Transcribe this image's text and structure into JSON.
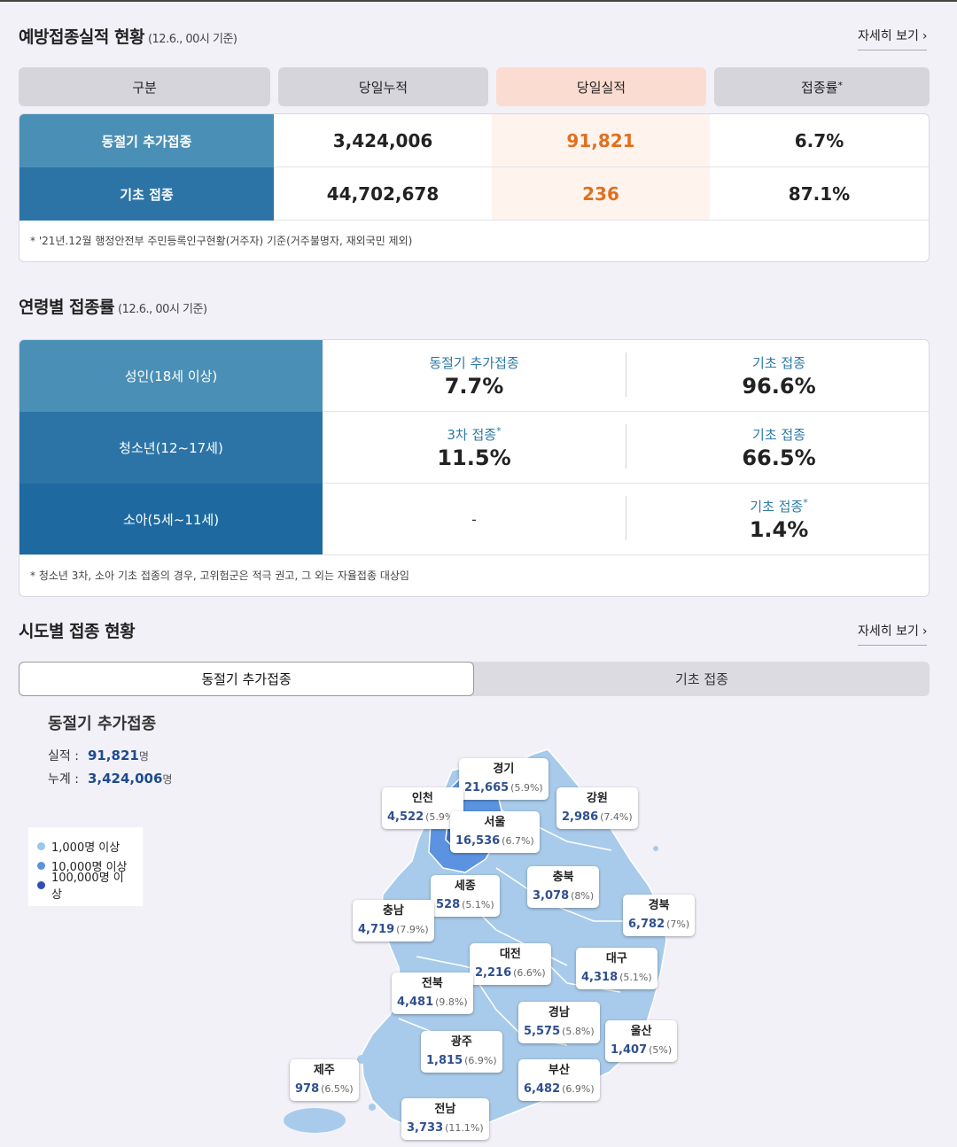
{
  "vaccination_status": {
    "title": "예방접종실적 현황",
    "basis": "(12.6., 00시 기준)",
    "more_label": "자세히 보기",
    "headers": [
      "구분",
      "당일누적",
      "당일실적",
      "접종률"
    ],
    "rate_mark": "*",
    "rows": [
      {
        "label": "동절기 추가접종",
        "cumulative": "3,424,006",
        "today": "91,821",
        "rate": "6.7%"
      },
      {
        "label": "기초 접종",
        "cumulative": "44,702,678",
        "today": "236",
        "rate": "87.1%"
      }
    ],
    "note": "* '21년.12월 행정안전부 주민등록인구현황(거주자) 기준(거주불명자, 재외국민 제외)"
  },
  "age_rates": {
    "title": "연령별 접종률",
    "basis": "(12.6., 00시 기준)",
    "rows": [
      {
        "label": "성인(18세 이상)",
        "left_label": "동절기 추가접종",
        "left_mark": "",
        "left_value": "7.7%",
        "right_label": "기초 접종",
        "right_mark": "",
        "right_value": "96.6%"
      },
      {
        "label": "청소년(12~17세)",
        "left_label": "3차 접종",
        "left_mark": "*",
        "left_value": "11.5%",
        "right_label": "기초 접종",
        "right_mark": "",
        "right_value": "66.5%"
      },
      {
        "label": "소아(5세~11세)",
        "left_label": "",
        "left_mark": "",
        "left_value": "-",
        "right_label": "기초 접종",
        "right_mark": "*",
        "right_value": "1.4%"
      }
    ],
    "note": "* 청소년 3차, 소아 기초 접종의 경우, 고위험군은 적극 권고, 그 외는 자율접종 대상임"
  },
  "regional": {
    "title": "시도별 접종 현황",
    "more_label": "자세히 보기",
    "tabs": [
      "동절기 추가접종",
      "기초 접종"
    ],
    "active_tab": 0,
    "map_title": "동절기 추가접종",
    "actual_label": "실적 :",
    "actual_value": "91,821",
    "total_label": "누계 :",
    "total_value": "3,424,006",
    "unit": "명",
    "legend": [
      {
        "label": "1,000명 이상",
        "color": "#9cc6ea"
      },
      {
        "label": "10,000명 이상",
        "color": "#5b93e0"
      },
      {
        "label": "100,000명 이상",
        "color": "#2f4fb0"
      }
    ],
    "regions": [
      {
        "name": "경기",
        "count": "21,665",
        "pct": "(5.9%)"
      },
      {
        "name": "인천",
        "count": "4,522",
        "pct": "(5.9%)"
      },
      {
        "name": "서울",
        "count": "16,536",
        "pct": "(6.7%)"
      },
      {
        "name": "강원",
        "count": "2,986",
        "pct": "(7.4%)"
      },
      {
        "name": "세종",
        "count": "528",
        "pct": "(5.1%)"
      },
      {
        "name": "충북",
        "count": "3,078",
        "pct": "(8%)"
      },
      {
        "name": "충남",
        "count": "4,719",
        "pct": "(7.9%)"
      },
      {
        "name": "경북",
        "count": "6,782",
        "pct": "(7%)"
      },
      {
        "name": "대전",
        "count": "2,216",
        "pct": "(6.6%)"
      },
      {
        "name": "대구",
        "count": "4,318",
        "pct": "(5.1%)"
      },
      {
        "name": "전북",
        "count": "4,481",
        "pct": "(9.8%)"
      },
      {
        "name": "경남",
        "count": "5,575",
        "pct": "(5.8%)"
      },
      {
        "name": "울산",
        "count": "1,407",
        "pct": "(5%)"
      },
      {
        "name": "광주",
        "count": "1,815",
        "pct": "(6.9%)"
      },
      {
        "name": "부산",
        "count": "6,482",
        "pct": "(6.9%)"
      },
      {
        "name": "제주",
        "count": "978",
        "pct": "(6.5%)"
      },
      {
        "name": "전남",
        "count": "3,733",
        "pct": "(11.1%)"
      }
    ]
  },
  "colors": {
    "row_label_1": "#4a8fb5",
    "row_label_2": "#2c74a6",
    "row_label_3": "#1e6aa0",
    "today_highlight": "#e07020",
    "map_fill": "#a8cbeb",
    "map_metro": "#5b93e0"
  }
}
